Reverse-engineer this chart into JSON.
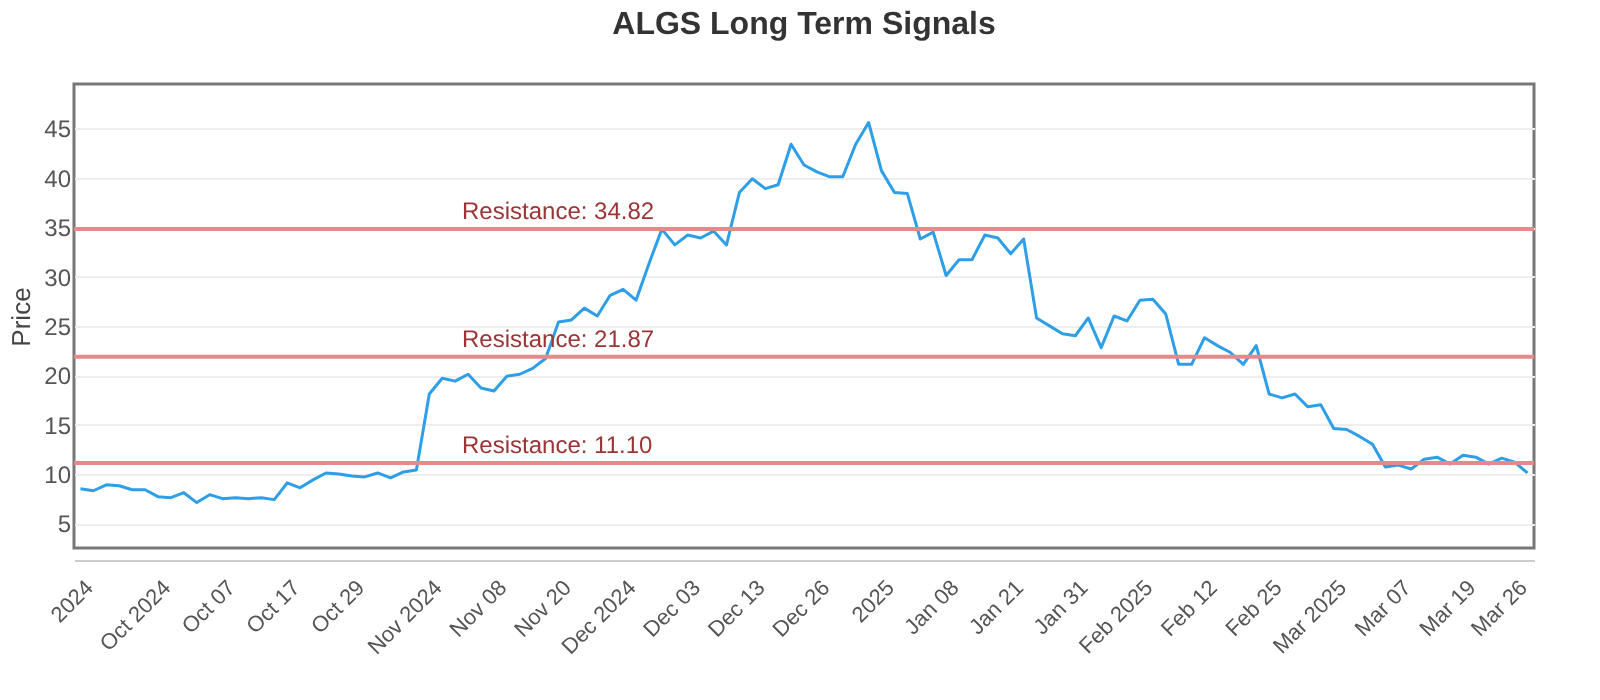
{
  "chart_data": {
    "type": "line",
    "title": "ALGS Long Term Signals",
    "ylabel": "Price",
    "categories": [
      null,
      "2024",
      null,
      null,
      null,
      null,
      null,
      "Oct 2024",
      null,
      null,
      null,
      null,
      "Oct 07",
      null,
      null,
      null,
      null,
      "Oct 17",
      null,
      null,
      null,
      null,
      "Oct 29",
      null,
      null,
      null,
      null,
      null,
      "Nov 2024",
      null,
      null,
      null,
      null,
      "Nov 08",
      null,
      null,
      null,
      null,
      "Nov 20",
      null,
      null,
      null,
      null,
      "Dec 2024",
      null,
      null,
      null,
      null,
      "Dec 03",
      null,
      null,
      null,
      null,
      "Dec 13",
      null,
      null,
      null,
      null,
      "Dec 26",
      null,
      null,
      null,
      null,
      "2025",
      null,
      null,
      null,
      null,
      "Jan 08",
      null,
      null,
      null,
      null,
      "Jan 21",
      null,
      null,
      null,
      null,
      "Jan 31",
      null,
      null,
      null,
      null,
      "Feb 2025",
      null,
      null,
      null,
      null,
      "Feb 12",
      null,
      null,
      null,
      null,
      "Feb 25",
      null,
      null,
      null,
      null,
      "Mar 2025",
      null,
      null,
      null,
      null,
      "Mar 07",
      null,
      null,
      null,
      null,
      "Mar 19",
      null,
      null,
      null,
      "Mar 26"
    ],
    "series": [
      {
        "color": "#2e9fe6",
        "values": [
          8.5,
          8.3,
          8.9,
          8.8,
          8.4,
          8.4,
          7.7,
          7.6,
          8.1,
          7.1,
          7.9,
          7.5,
          7.6,
          7.5,
          7.6,
          7.4,
          9.1,
          8.6,
          9.4,
          10.1,
          10.0,
          9.8,
          9.7,
          10.1,
          9.6,
          10.2,
          10.4,
          18.1,
          19.7,
          19.4,
          20.1,
          18.7,
          18.4,
          19.9,
          20.1,
          20.7,
          21.7,
          25.4,
          25.6,
          26.8,
          26.0,
          28.1,
          28.7,
          27.6,
          31.3,
          34.8,
          33.2,
          34.2,
          33.9,
          34.6,
          33.2,
          38.5,
          39.9,
          38.9,
          39.3,
          43.4,
          41.3,
          40.6,
          40.1,
          40.1,
          43.4,
          45.6,
          40.7,
          38.5,
          38.4,
          33.8,
          34.5,
          30.1,
          31.7,
          31.7,
          34.2,
          33.9,
          32.3,
          33.8,
          25.8,
          25.0,
          24.2,
          24.0,
          25.8,
          22.8,
          26.0,
          25.5,
          27.6,
          27.7,
          26.2,
          21.1,
          21.1,
          23.8,
          23.0,
          22.3,
          21.1,
          23.0,
          18.1,
          17.7,
          18.1,
          16.8,
          17.0,
          14.6,
          14.5,
          13.8,
          13.0,
          10.7,
          10.9,
          10.5,
          11.5,
          11.7,
          11.0,
          11.9,
          11.7,
          11.0,
          11.6,
          11.2,
          10.1
        ]
      }
    ],
    "ylim": [
      2.5,
      49.5
    ],
    "yticks": [
      5,
      10,
      15,
      20,
      25,
      30,
      35,
      40,
      45
    ],
    "grid": "y",
    "marker": "none",
    "ref_lines": [
      {
        "axis": "y",
        "value": 34.82,
        "label": "Resistance: 34.82",
        "color": "#e48a8a"
      },
      {
        "axis": "y",
        "value": 21.87,
        "label": "Resistance: 21.87",
        "color": "#e48a8a"
      },
      {
        "axis": "y",
        "value": 11.1,
        "label": "Resistance: 11.10",
        "color": "#e48a8a"
      }
    ]
  }
}
